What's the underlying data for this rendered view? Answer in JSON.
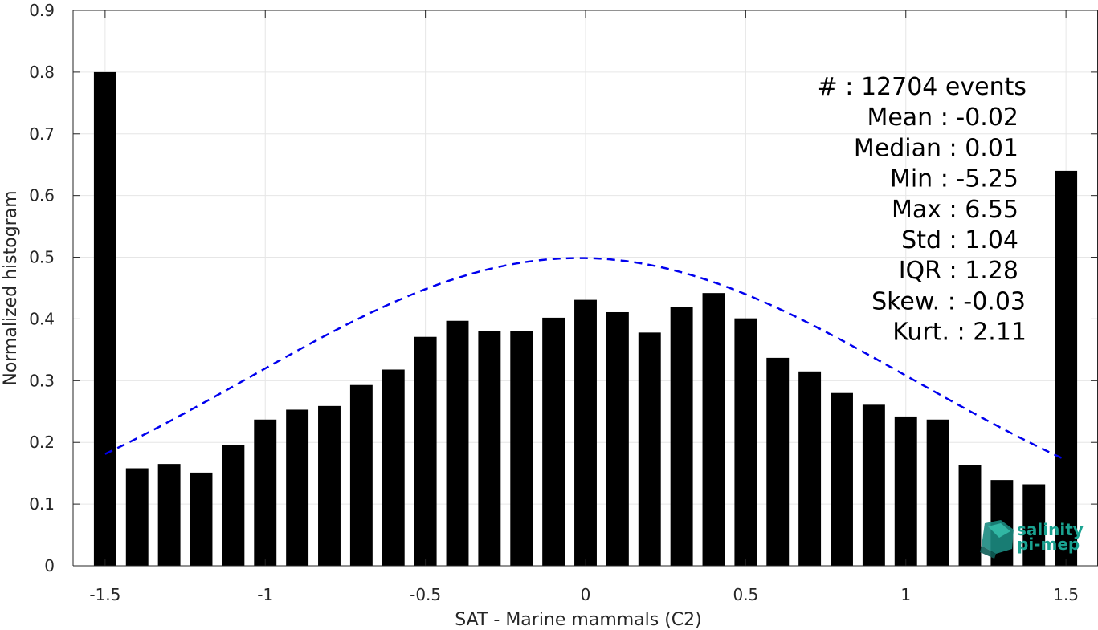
{
  "chart_data": {
    "type": "bar",
    "xlabel": "SAT - Marine mammals (C2)",
    "ylabel": "Normalized histogram",
    "xlim": [
      -1.6,
      1.6
    ],
    "ylim": [
      0,
      0.9
    ],
    "xticks": [
      -1.5,
      -1,
      -0.5,
      0,
      0.5,
      1,
      1.5
    ],
    "xtick_labels": [
      "-1.5",
      "-1",
      "-0.5",
      "0",
      "0.5",
      "1",
      "1.5"
    ],
    "yticks": [
      0,
      0.1,
      0.2,
      0.3,
      0.4,
      0.5,
      0.6,
      0.7,
      0.8,
      0.9
    ],
    "ytick_labels": [
      "0",
      "0.1",
      "0.2",
      "0.3",
      "0.4",
      "0.5",
      "0.6",
      "0.7",
      "0.8",
      "0.9"
    ],
    "grid": true,
    "bar_color": "#000000",
    "bar_width": 0.07,
    "bins": [
      -1.5,
      -1.4,
      -1.3,
      -1.2,
      -1.1,
      -1.0,
      -0.9,
      -0.8,
      -0.7,
      -0.6,
      -0.5,
      -0.4,
      -0.3,
      -0.2,
      -0.1,
      0.0,
      0.1,
      0.2,
      0.3,
      0.4,
      0.5,
      0.6,
      0.7,
      0.8,
      0.9,
      1.0,
      1.1,
      1.2,
      1.3,
      1.4,
      1.5
    ],
    "values": [
      0.8,
      0.158,
      0.165,
      0.151,
      0.196,
      0.237,
      0.253,
      0.259,
      0.293,
      0.318,
      0.371,
      0.397,
      0.381,
      0.38,
      0.402,
      0.431,
      0.411,
      0.378,
      0.419,
      0.442,
      0.401,
      0.337,
      0.315,
      0.28,
      0.261,
      0.242,
      0.237,
      0.163,
      0.139,
      0.132,
      0.64
    ],
    "fit_curve": {
      "style": "dashed",
      "color": "#0000ee",
      "mean": -0.02,
      "std": 1.04,
      "scale": 1.3,
      "x_range": [
        -1.5,
        1.5
      ]
    },
    "stats": [
      "#  : 12704 events",
      "Mean : -0.02",
      "Median : 0.01",
      "Min : -5.25",
      "Max : 6.55",
      "Std : 1.04",
      "IQR : 1.28",
      "Skew. : -0.03",
      "Kurt. : 2.11"
    ]
  },
  "logo": {
    "line1": "salinity",
    "line2": "pi-mep",
    "color": "#1aa391"
  }
}
